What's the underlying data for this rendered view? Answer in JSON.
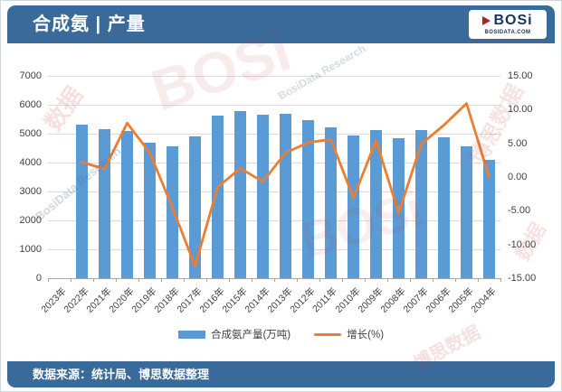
{
  "header": {
    "title": "合成氨 | 产量",
    "logo": {
      "text": "BOSi",
      "subtext": "BOSIDATA.COM"
    }
  },
  "footer": {
    "source": "数据来源：统计局、博思数据整理"
  },
  "watermarks": [
    "BOSi",
    "数据",
    "博思数据",
    "BosiData Research",
    "BOSi",
    "BosiData Research",
    "博思数据",
    "数据"
  ],
  "colors": {
    "band_blue": "#3a6a9a",
    "bar_blue": "#5b9bd5",
    "line_orange": "#ed7d31",
    "gridline": "#dcdcdc"
  },
  "chart_data": {
    "type": "bar",
    "subtype": "bar+line combo, dual axis",
    "title": "合成氨 | 产量",
    "categories": [
      "2023年",
      "2022年",
      "2021年",
      "2020年",
      "2019年",
      "2018年",
      "2017年",
      "2016年",
      "2015年",
      "2014年",
      "2013年",
      "2012年",
      "2011年",
      "2010年",
      "2009年",
      "2008年",
      "2007年",
      "2006年",
      "2005年",
      "2004年"
    ],
    "series": [
      {
        "name": "合成氨产量(万吨)",
        "type": "bar",
        "axis": "left",
        "color": "#5b9bd5",
        "values": [
          null,
          5300,
          5170,
          5100,
          4700,
          4550,
          4900,
          5630,
          5780,
          5660,
          5690,
          5480,
          5220,
          4930,
          5130,
          4850,
          5130,
          4880,
          4570,
          4090
        ]
      },
      {
        "name": "增长(%)",
        "type": "line",
        "axis": "right",
        "color": "#ed7d31",
        "values": [
          null,
          2.2,
          1.2,
          8.0,
          3.6,
          -4.5,
          -13.2,
          -1.5,
          1.3,
          -0.7,
          3.6,
          5.1,
          5.6,
          -3.1,
          5.4,
          -5.3,
          4.9,
          7.7,
          10.9,
          0.0
        ]
      }
    ],
    "left_axis": {
      "min": 0,
      "max": 7000,
      "step": 1000,
      "labels": [
        "0",
        "1000",
        "2000",
        "3000",
        "4000",
        "5000",
        "6000",
        "7000"
      ]
    },
    "right_axis": {
      "min": -15,
      "max": 15,
      "step": 5,
      "labels": [
        "-15.00",
        "-10.00",
        "-5.00",
        "0.00",
        "5.00",
        "10.00",
        "15.00"
      ]
    },
    "grid": true,
    "legend_position": "bottom"
  }
}
